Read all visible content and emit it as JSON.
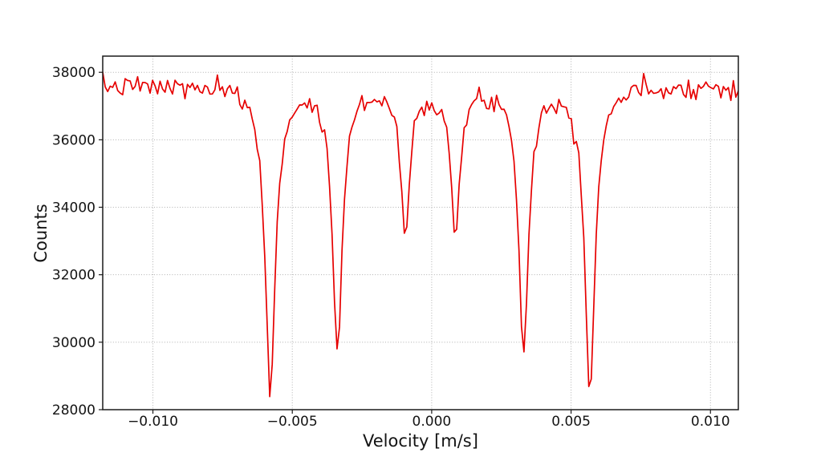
{
  "figure": {
    "kind": "plot-only screenshot",
    "background": "#ffffff"
  },
  "chart_data": {
    "type": "line",
    "title": "",
    "xlabel": "Velocity [m/s]",
    "ylabel": "Counts",
    "x_range": [
      -0.0118,
      0.011
    ],
    "y_range": [
      28000,
      38480
    ],
    "x_ticks": [
      {
        "value": -0.01,
        "label": "−0.010"
      },
      {
        "value": -0.005,
        "label": "−0.005"
      },
      {
        "value": 0.0,
        "label": "0.000"
      },
      {
        "value": 0.005,
        "label": "0.005"
      },
      {
        "value": 0.01,
        "label": "0.010"
      }
    ],
    "y_ticks": [
      {
        "value": 28000,
        "label": "28000"
      },
      {
        "value": 30000,
        "label": "30000"
      },
      {
        "value": 32000,
        "label": "32000"
      },
      {
        "value": 34000,
        "label": "34000"
      },
      {
        "value": 36000,
        "label": "36000"
      },
      {
        "value": 38000,
        "label": "38000"
      }
    ],
    "grid": {
      "visible": true,
      "style": "dotted",
      "color": "#b0b0b0"
    },
    "axes_color": "#1a1a1a",
    "text_color": "#141414",
    "background": "#ffffff",
    "legend": "none",
    "series": [
      {
        "name": "counts_vs_velocity_spectrum",
        "type": "line",
        "color": "#e60000",
        "marker": "none",
        "model": "baseline_minus_lorentzian_dips_with_noise",
        "baseline_counts": 37600,
        "noise_std_counts": 155,
        "noise_seed": 7,
        "n_points": 256,
        "peaks": [
          {
            "center_velocity": -0.00578,
            "min_counts": 28500,
            "hwhm": 0.00022
          },
          {
            "center_velocity": -0.00338,
            "min_counts": 29810,
            "hwhm": 0.00021
          },
          {
            "center_velocity": -0.00094,
            "min_counts": 33240,
            "hwhm": 0.00019
          },
          {
            "center_velocity": 0.00086,
            "min_counts": 33150,
            "hwhm": 0.00019
          },
          {
            "center_velocity": 0.0033,
            "min_counts": 29890,
            "hwhm": 0.00021
          },
          {
            "center_velocity": 0.00568,
            "min_counts": 28720,
            "hwhm": 0.00022
          }
        ]
      }
    ]
  }
}
